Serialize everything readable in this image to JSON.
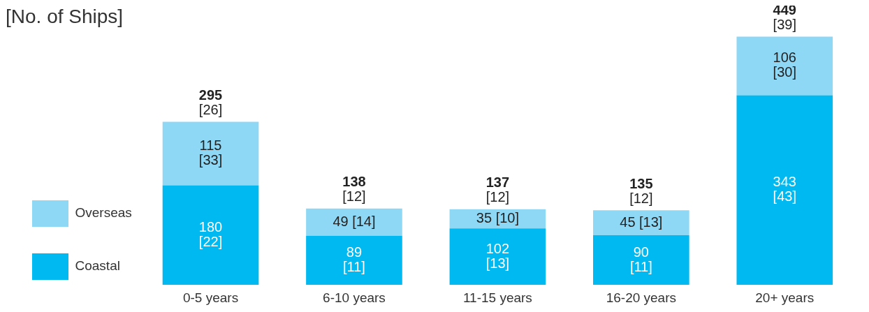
{
  "chart_data": {
    "type": "bar",
    "title": "[No. of Ships]",
    "stacked": true,
    "legend": "bottom left",
    "categories": [
      "0-5 years",
      "6-10 years",
      "11-15 years",
      "16-20 years",
      "20+ years"
    ],
    "series": [
      {
        "name": "Coastal",
        "color": "#00b9f0",
        "values": [
          180,
          89,
          102,
          90,
          343
        ],
        "value_labels": [
          "180\n[22]",
          "89\n[11]",
          "102\n[13]",
          "90\n[11]",
          "343\n[43]"
        ]
      },
      {
        "name": "Overseas",
        "color": "#8fd8f5",
        "values": [
          115,
          49,
          35,
          45,
          106
        ],
        "value_labels": [
          "115\n[33]",
          "49\n[14]",
          "35\n[10]",
          "45\n[13]",
          "106\n[30]"
        ]
      }
    ],
    "totals": [
      "295\n[26]",
      "138\n[12]",
      "137\n[12]",
      "135\n[12]",
      "449\n[39]"
    ]
  }
}
